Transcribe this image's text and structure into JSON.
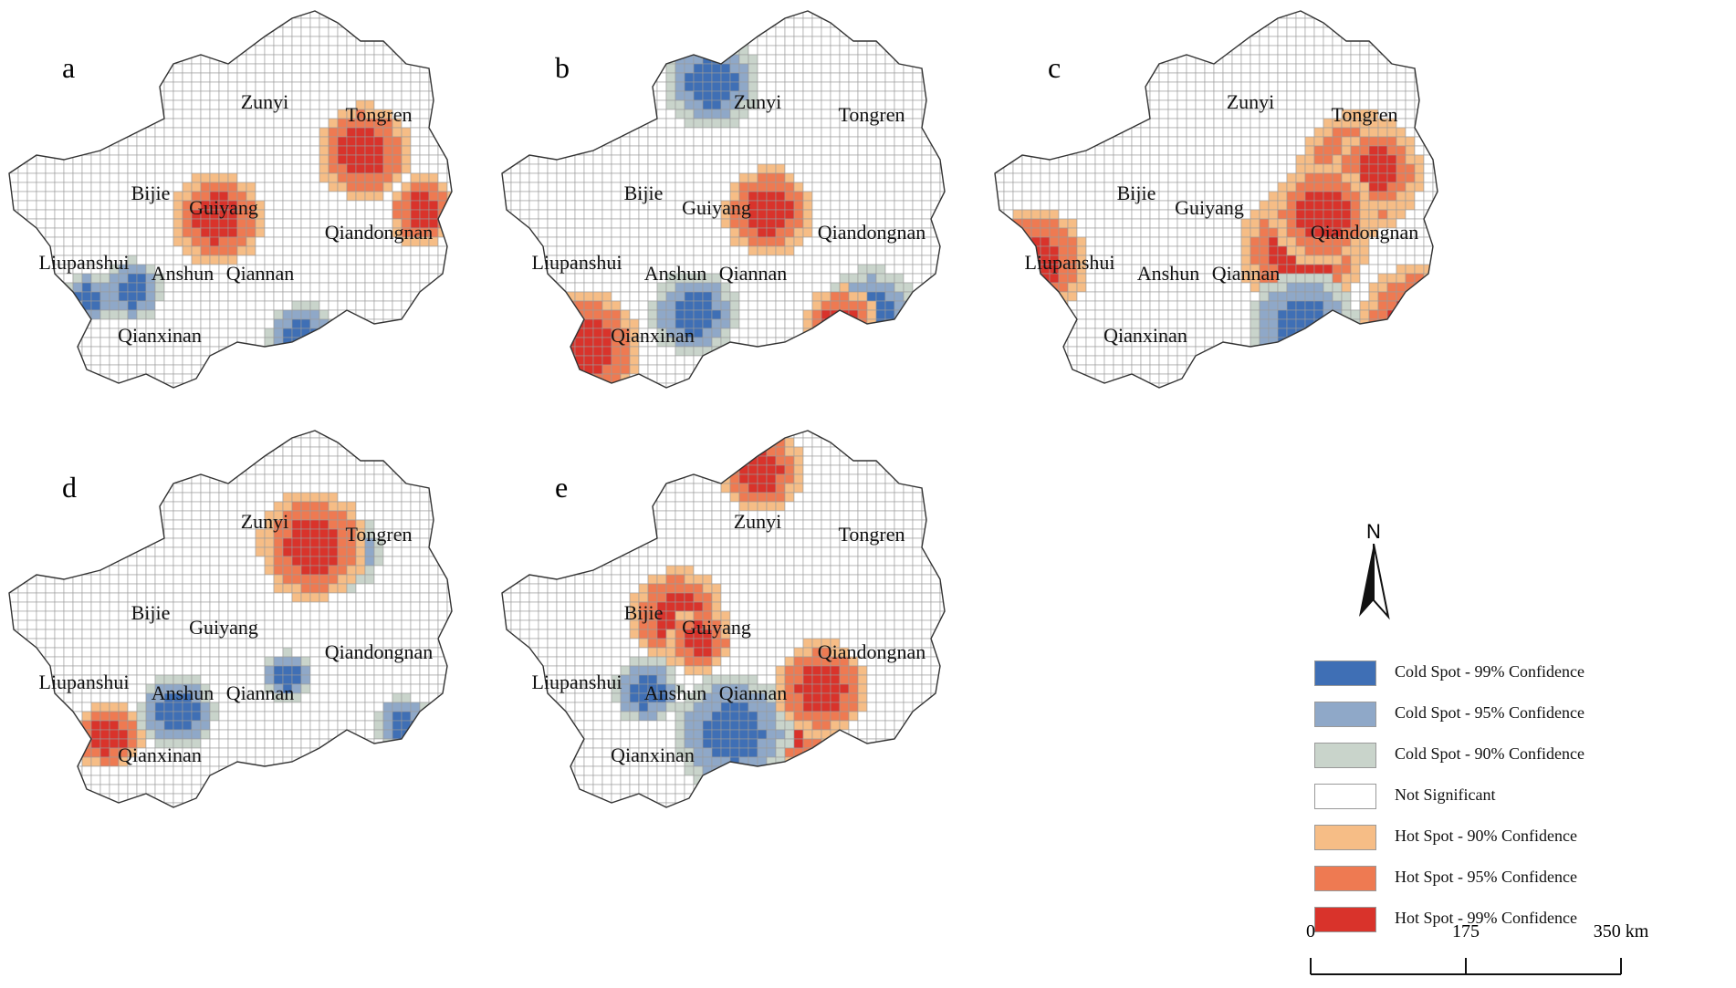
{
  "panels": [
    {
      "letter": "a",
      "seed": 11,
      "cities": [
        "Zunyi",
        "Tongren",
        "Bijie",
        "Guiyang",
        "Qiandongnan",
        "Liupanshui",
        "Anshun",
        "Qiannan",
        "Qianxinan"
      ]
    },
    {
      "letter": "b",
      "seed": 23,
      "cities": [
        "Zunyi",
        "Tongren",
        "Bijie",
        "Guiyang",
        "Qiandongnan",
        "Liupanshui",
        "Anshun",
        "Qiannan",
        "Qianxinan"
      ]
    },
    {
      "letter": "c",
      "seed": 37,
      "cities": [
        "Zunyi",
        "Tongren",
        "Bijie",
        "Guiyang",
        "Qiandongnan",
        "Liupanshui",
        "Anshun",
        "Qiannan",
        "Qianxinan"
      ]
    },
    {
      "letter": "d",
      "seed": 41,
      "cities": [
        "Zunyi",
        "Tongren",
        "Bijie",
        "Guiyang",
        "Qiandongnan",
        "Liupanshui",
        "Anshun",
        "Qiannan",
        "Qianxinan"
      ]
    },
    {
      "letter": "e",
      "seed": 59,
      "cities": [
        "Zunyi",
        "Tongren",
        "Bijie",
        "Guiyang",
        "Qiandongnan",
        "Liupanshui",
        "Anshun",
        "Qiannan",
        "Qianxinan"
      ]
    }
  ],
  "north_label": "N",
  "legend": [
    {
      "label": "Cold Spot - 99% Confidence",
      "color": "#3f6fb5"
    },
    {
      "label": "Cold Spot - 95% Confidence",
      "color": "#8fa8c8"
    },
    {
      "label": "Cold Spot - 90% Confidence",
      "color": "#c9d4cb"
    },
    {
      "label": "Not Significant",
      "color": "#ffffff"
    },
    {
      "label": "Hot Spot - 90% Confidence",
      "color": "#f6bd86"
    },
    {
      "label": "Hot Spot - 95% Confidence",
      "color": "#ee7a52"
    },
    {
      "label": "Hot Spot - 99% Confidence",
      "color": "#d9332b"
    }
  ],
  "scale_bar": {
    "ticks": [
      "0",
      "175",
      "350 km"
    ]
  }
}
